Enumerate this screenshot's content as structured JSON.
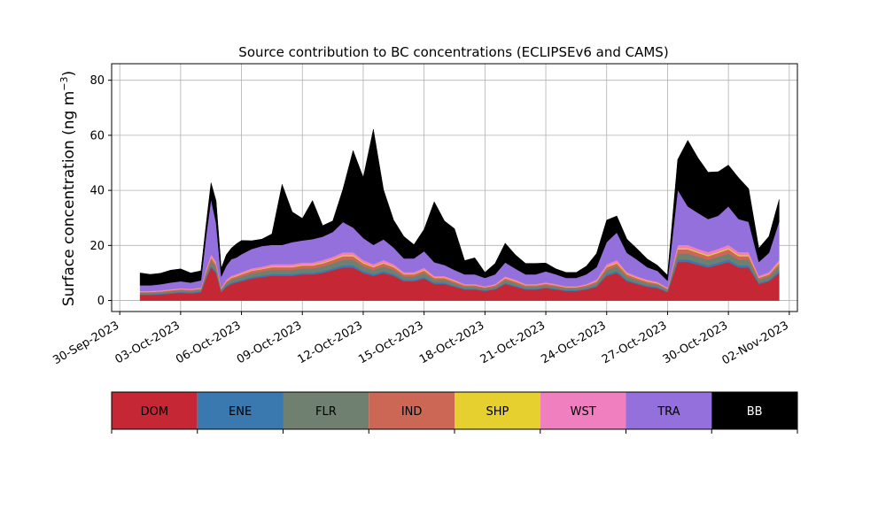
{
  "chart_data": {
    "type": "area",
    "stacked": true,
    "title": "Source contribution to BC concentrations (ECLIPSEv6 and CAMS)",
    "xlabel": "",
    "ylabel": "Surface concentration (ng m",
    "ylabel_unit_superscript": "−3",
    "ylabel_suffix": ")",
    "x_tick_labels": [
      "30-Sep-2023",
      "03-Oct-2023",
      "06-Oct-2023",
      "09-Oct-2023",
      "12-Oct-2023",
      "15-Oct-2023",
      "18-Oct-2023",
      "21-Oct-2023",
      "24-Oct-2023",
      "27-Oct-2023",
      "30-Oct-2023",
      "02-Nov-2023"
    ],
    "x_tick_days": [
      0,
      3,
      6,
      9,
      12,
      15,
      18,
      21,
      24,
      27,
      30,
      33
    ],
    "xlim_days": [
      -0.4,
      33.4
    ],
    "ylim": [
      -4,
      86
    ],
    "y_ticks": [
      0,
      20,
      40,
      60,
      80
    ],
    "grid": true,
    "x": [
      1,
      1.5,
      2,
      2.5,
      3,
      3.5,
      4,
      4.25,
      4.5,
      4.75,
      5,
      5.25,
      5.5,
      5.75,
      6,
      6.5,
      7,
      7.5,
      8,
      8.5,
      9,
      9.5,
      10,
      10.5,
      11,
      11.5,
      12,
      12.5,
      13,
      13.5,
      14,
      14.5,
      15,
      15.5,
      16,
      16.5,
      17,
      17.5,
      18,
      18.5,
      19,
      19.5,
      20,
      20.5,
      21,
      21.5,
      22,
      22.5,
      23,
      23.5,
      24,
      24.5,
      25,
      25.5,
      26,
      26.5,
      27,
      27.5,
      28,
      28.5,
      29,
      29.5,
      30,
      30.5,
      31,
      31.5,
      32,
      32.5
    ],
    "series": [
      {
        "name": "DOM",
        "color": "#c52834",
        "values": [
          2,
          2,
          2.2,
          2.5,
          2.8,
          2.6,
          3,
          8,
          12,
          10,
          3,
          5,
          6,
          6.5,
          7,
          8,
          8.5,
          9,
          9,
          9,
          9.5,
          9.5,
          10,
          11,
          12,
          12,
          10,
          9,
          10,
          9,
          7,
          7,
          8,
          6,
          6,
          5,
          4,
          4,
          3.5,
          4,
          6,
          5,
          4,
          4,
          4.5,
          4,
          3.5,
          3.5,
          4,
          5,
          9,
          10,
          7,
          6,
          5,
          4.5,
          3,
          14,
          14,
          13,
          12,
          13,
          14,
          12,
          12,
          6,
          7,
          10
        ]
      },
      {
        "name": "ENE",
        "color": "#3a78b0",
        "values": [
          0.3,
          0.3,
          0.3,
          0.3,
          0.3,
          0.3,
          0.3,
          0.5,
          0.6,
          0.6,
          0.3,
          0.4,
          0.5,
          0.5,
          0.5,
          0.6,
          0.6,
          0.6,
          0.6,
          0.6,
          0.6,
          0.6,
          0.7,
          0.7,
          0.8,
          0.8,
          0.7,
          0.6,
          0.7,
          0.6,
          0.5,
          0.5,
          0.6,
          0.5,
          0.5,
          0.4,
          0.3,
          0.3,
          0.3,
          0.3,
          0.4,
          0.4,
          0.3,
          0.3,
          0.3,
          0.3,
          0.3,
          0.3,
          0.3,
          0.4,
          0.6,
          0.7,
          0.5,
          0.4,
          0.4,
          0.4,
          0.3,
          0.9,
          0.9,
          0.8,
          0.8,
          0.8,
          0.9,
          0.8,
          0.8,
          0.4,
          0.5,
          0.7
        ]
      },
      {
        "name": "FLR",
        "color": "#6f8070",
        "values": [
          0.5,
          0.5,
          0.5,
          0.6,
          0.6,
          0.6,
          0.6,
          1.2,
          1.8,
          1.5,
          0.6,
          0.9,
          1,
          1.1,
          1.2,
          1.3,
          1.4,
          1.5,
          1.5,
          1.5,
          1.6,
          1.6,
          1.7,
          1.8,
          2,
          2,
          1.7,
          1.5,
          1.7,
          1.5,
          1.2,
          1.2,
          1.4,
          1,
          1,
          0.9,
          0.7,
          0.7,
          0.6,
          0.7,
          1,
          0.9,
          0.7,
          0.7,
          0.8,
          0.7,
          0.6,
          0.6,
          0.7,
          0.9,
          1.5,
          1.7,
          1.2,
          1,
          0.9,
          0.8,
          0.6,
          2.2,
          2.2,
          2.1,
          2,
          2.1,
          2.2,
          2,
          2,
          1.1,
          1.2,
          1.7
        ]
      },
      {
        "name": "IND",
        "color": "#cc6655",
        "values": [
          0.3,
          0.3,
          0.3,
          0.3,
          0.4,
          0.4,
          0.4,
          0.8,
          1.2,
          1,
          0.4,
          0.6,
          0.7,
          0.7,
          0.8,
          0.9,
          0.9,
          1,
          1,
          1,
          1,
          1,
          1.1,
          1.2,
          1.3,
          1.3,
          1.1,
          1,
          1.1,
          1,
          0.8,
          0.8,
          0.9,
          0.7,
          0.7,
          0.6,
          0.5,
          0.5,
          0.4,
          0.5,
          0.7,
          0.6,
          0.5,
          0.5,
          0.5,
          0.5,
          0.4,
          0.4,
          0.5,
          0.6,
          1,
          1.1,
          0.8,
          0.7,
          0.6,
          0.5,
          0.4,
          1.5,
          1.5,
          1.4,
          1.3,
          1.4,
          1.5,
          1.3,
          1.3,
          0.7,
          0.8,
          1.1
        ]
      },
      {
        "name": "SHP",
        "color": "#e6d030",
        "values": [
          0.1,
          0.1,
          0.1,
          0.1,
          0.1,
          0.1,
          0.1,
          0.2,
          0.3,
          0.3,
          0.1,
          0.2,
          0.2,
          0.2,
          0.2,
          0.2,
          0.2,
          0.3,
          0.3,
          0.3,
          0.3,
          0.3,
          0.3,
          0.3,
          0.4,
          0.4,
          0.3,
          0.3,
          0.3,
          0.3,
          0.2,
          0.2,
          0.3,
          0.2,
          0.2,
          0.2,
          0.1,
          0.1,
          0.1,
          0.1,
          0.2,
          0.2,
          0.1,
          0.1,
          0.1,
          0.1,
          0.1,
          0.1,
          0.1,
          0.2,
          0.3,
          0.3,
          0.2,
          0.2,
          0.2,
          0.2,
          0.1,
          0.4,
          0.4,
          0.4,
          0.4,
          0.4,
          0.4,
          0.4,
          0.4,
          0.2,
          0.2,
          0.3
        ]
      },
      {
        "name": "WST",
        "color": "#f07fc0",
        "values": [
          0.3,
          0.3,
          0.3,
          0.3,
          0.3,
          0.3,
          0.3,
          0.6,
          0.9,
          0.8,
          0.3,
          0.5,
          0.6,
          0.6,
          0.6,
          0.7,
          0.7,
          0.8,
          0.8,
          0.8,
          0.8,
          0.8,
          0.9,
          0.9,
          1,
          1,
          0.9,
          0.8,
          0.9,
          0.8,
          0.6,
          0.6,
          0.7,
          0.5,
          0.5,
          0.5,
          0.4,
          0.4,
          0.3,
          0.4,
          0.5,
          0.5,
          0.4,
          0.4,
          0.4,
          0.4,
          0.3,
          0.3,
          0.4,
          0.5,
          0.8,
          0.9,
          0.6,
          0.5,
          0.5,
          0.4,
          0.3,
          1.2,
          1.2,
          1.1,
          1.1,
          1.1,
          1.2,
          1.1,
          1.1,
          0.6,
          0.6,
          0.9
        ]
      },
      {
        "name": "TRA",
        "color": "#9370db",
        "values": [
          2,
          2,
          2.2,
          2.4,
          2.5,
          2.2,
          2.6,
          12,
          20,
          14,
          4,
          5,
          6,
          6,
          6.5,
          7,
          7.5,
          7,
          7,
          8,
          8,
          8.5,
          8.5,
          9,
          11,
          9,
          8,
          7,
          7.5,
          6,
          5,
          5,
          6,
          5,
          4,
          3.5,
          3.5,
          3.5,
          3,
          3.5,
          5,
          4,
          3.5,
          3.5,
          4,
          3.5,
          3,
          3,
          3.5,
          4.5,
          8,
          10,
          7,
          6,
          4.5,
          4,
          2.5,
          20,
          14,
          13,
          12,
          12,
          14,
          12,
          11,
          5,
          7,
          14
        ]
      },
      {
        "name": "BB",
        "color": "#000000",
        "values": [
          4.5,
          4,
          4,
          4.5,
          4.5,
          3.5,
          3.5,
          4,
          6,
          8,
          3,
          4,
          4,
          5,
          5,
          3,
          2.5,
          4,
          22,
          11,
          8,
          14,
          4,
          4,
          12,
          28,
          22,
          42,
          18,
          10,
          8,
          5,
          8,
          22,
          16,
          15,
          5,
          6,
          2,
          4,
          7,
          5,
          4,
          4,
          3,
          2,
          2,
          2,
          3,
          5,
          8,
          6,
          5,
          4,
          3,
          2,
          2,
          11,
          24,
          20,
          17,
          16,
          15,
          15,
          12,
          5,
          6,
          8
        ]
      }
    ]
  }
}
